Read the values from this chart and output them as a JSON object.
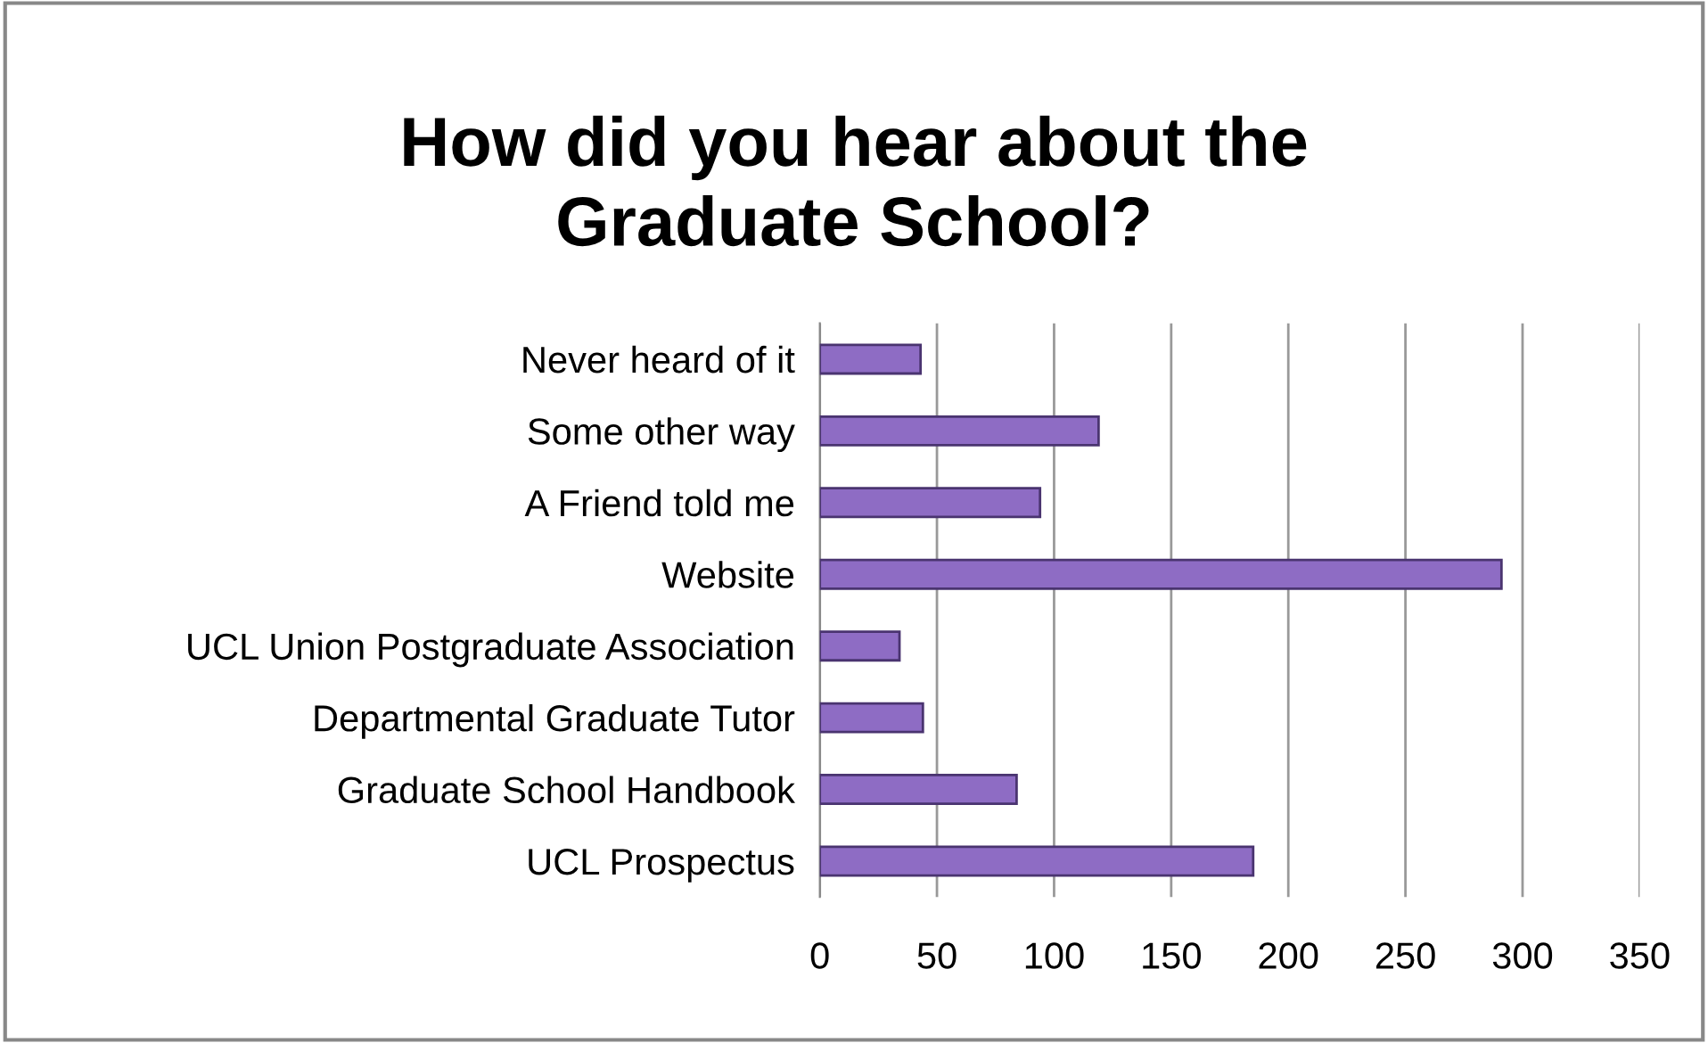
{
  "chart_data": {
    "type": "bar",
    "orientation": "horizontal",
    "title": "How did you hear about the\nGraduate School?",
    "categories": [
      "Never heard of it",
      "Some other way",
      "A Friend told me",
      "Website",
      "UCL Union Postgraduate Association",
      "Departmental Graduate Tutor",
      "Graduate School Handbook",
      "UCL Prospectus"
    ],
    "values": [
      43,
      119,
      94,
      291,
      34,
      44,
      84,
      185
    ],
    "color": "#8e6cc4",
    "xlim": [
      0,
      350
    ],
    "xticks": [
      0,
      50,
      100,
      150,
      200,
      250,
      300,
      350
    ],
    "grid": "x",
    "legend": false
  }
}
